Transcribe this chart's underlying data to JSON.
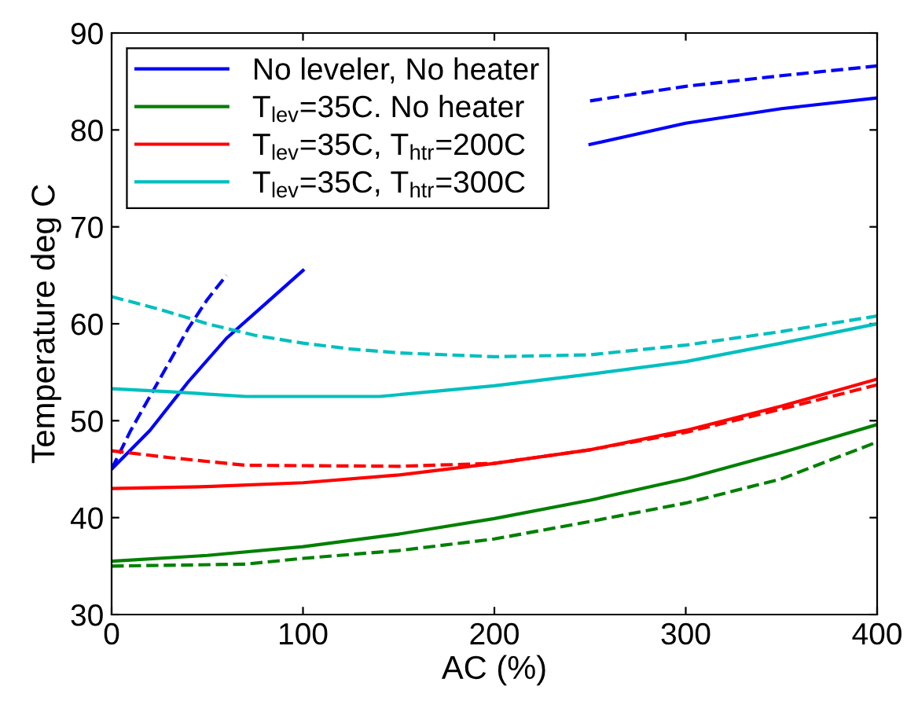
{
  "chart_data": {
    "type": "line",
    "xlabel": "AC (%)",
    "ylabel": "Temperature deg C",
    "xlim": [
      0,
      400
    ],
    "ylim": [
      30,
      90
    ],
    "xticks": [
      0,
      100,
      200,
      300,
      400
    ],
    "yticks": [
      30,
      40,
      50,
      60,
      70,
      80,
      90
    ],
    "grid": false,
    "legend": "top left",
    "marker": "none",
    "series": [
      {
        "name": "No leveler, No heater",
        "color": "#0000ff",
        "line_style": "solid",
        "x": [
          0,
          20,
          40,
          60,
          80,
          100,
          120,
          240,
          250,
          300,
          350,
          400
        ],
        "values": [
          45,
          49,
          54,
          58.5,
          62,
          65.5,
          null,
          null,
          78.5,
          80.7,
          82.2,
          83.3
        ]
      },
      {
        "color": "#0000ff",
        "line_style": "dashed",
        "x": [
          0,
          10,
          20,
          30,
          40,
          50,
          60,
          70,
          240,
          250,
          300,
          350,
          400
        ],
        "values": [
          45,
          49,
          52.5,
          56,
          59.5,
          62.5,
          65,
          null,
          null,
          83,
          84.5,
          85.6,
          86.6
        ]
      },
      {
        "name": "T$_{lev}$=35C. No heater",
        "color": "#008000",
        "line_style": "solid",
        "x": [
          0,
          50,
          100,
          150,
          200,
          250,
          300,
          350,
          400
        ],
        "values": [
          35.5,
          36.1,
          37,
          38.3,
          39.9,
          41.8,
          44,
          46.7,
          49.6
        ]
      },
      {
        "color": "#008000",
        "line_style": "dashed",
        "x": [
          0,
          70,
          100,
          150,
          200,
          250,
          300,
          350,
          400
        ],
        "values": [
          35,
          35.2,
          35.8,
          36.6,
          37.8,
          39.6,
          41.5,
          44,
          47.8
        ]
      },
      {
        "name": "T$_{lev}$=35C, T$_{htr}$=200C",
        "color": "#ff0000",
        "line_style": "solid",
        "x": [
          0,
          50,
          100,
          150,
          200,
          250,
          300,
          350,
          400
        ],
        "values": [
          43,
          43.2,
          43.6,
          44.4,
          45.6,
          47,
          49,
          51.5,
          54.3
        ]
      },
      {
        "color": "#ff0000",
        "line_style": "dashed",
        "x": [
          0,
          30,
          70,
          150,
          200,
          250,
          300,
          350,
          400
        ],
        "values": [
          46.9,
          46.2,
          45.4,
          45.3,
          45.6,
          47,
          48.8,
          51.2,
          53.7
        ]
      },
      {
        "name": "T$_{lev}$=35C, T$_{htr}$=300C",
        "color": "#00bfbf",
        "line_style": "solid",
        "x": [
          0,
          30,
          70,
          140,
          200,
          250,
          300,
          350,
          400
        ],
        "values": [
          53.3,
          53,
          52.5,
          52.5,
          53.6,
          54.8,
          56.1,
          58,
          60
        ]
      },
      {
        "color": "#00bfbf",
        "line_style": "dashed",
        "x": [
          0,
          25,
          50,
          75,
          100,
          125,
          150,
          200,
          250,
          300,
          350,
          400
        ],
        "values": [
          62.8,
          61.5,
          60,
          58.8,
          58,
          57.4,
          57,
          56.6,
          56.8,
          57.8,
          59.2,
          60.8
        ]
      }
    ]
  }
}
